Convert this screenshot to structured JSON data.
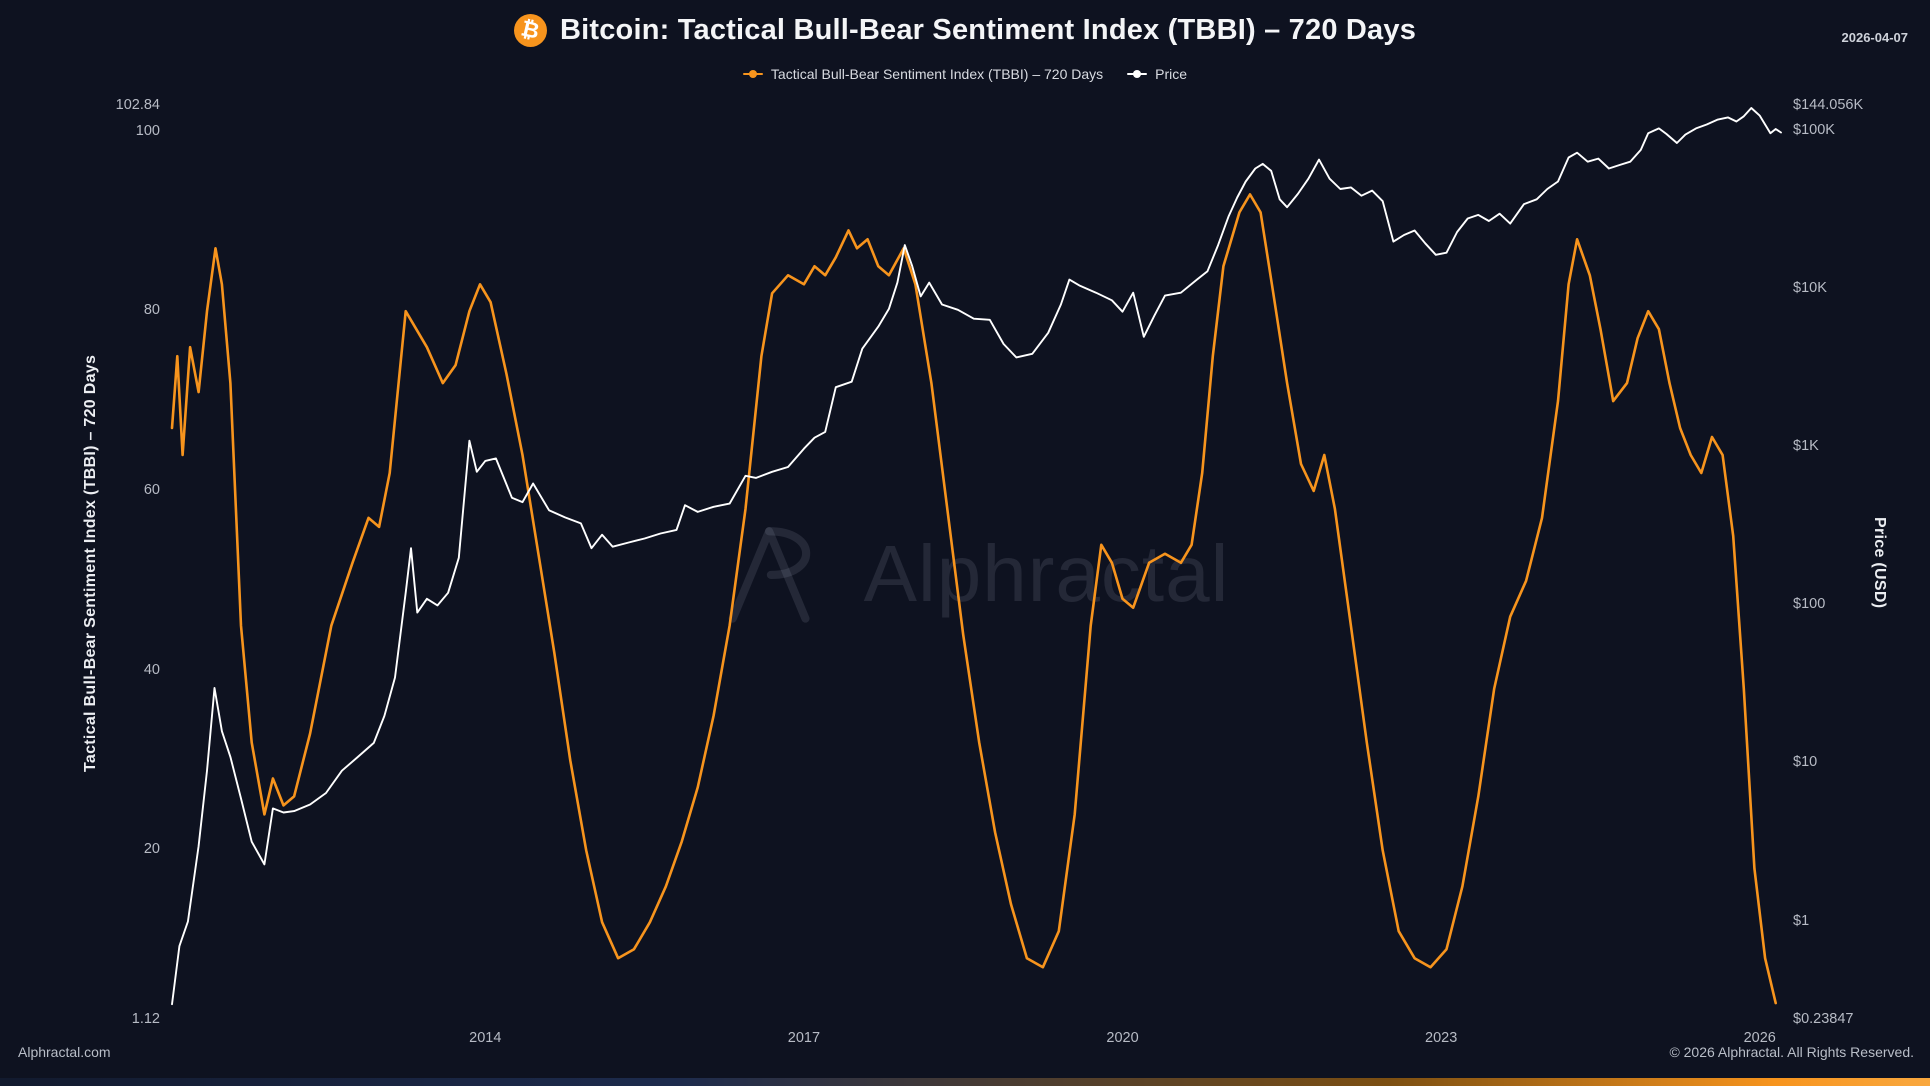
{
  "header": {
    "title": "Bitcoin: Tactical Bull-Bear Sentiment Index (TBBI) – 720 Days",
    "date": "2026-04-07",
    "bitcoin_symbol": "₿"
  },
  "legend": [
    {
      "label": "Tactical Bull-Bear Sentiment Index (TBBI) – 720 Days",
      "color": "#f7941d"
    },
    {
      "label": "Price",
      "color": "#ffffff"
    }
  ],
  "watermark": "Alphractal",
  "footer": {
    "left": "Alphractal.com",
    "right": "© 2026 Alphractal. All Rights Reserved."
  },
  "colors": {
    "background": "#0e1220",
    "tbbi_line": "#f7941d",
    "price_line": "#ffffff",
    "tick_text": "#b7bbc5"
  },
  "chart_data": {
    "type": "line",
    "title": "Bitcoin: Tactical Bull-Bear Sentiment Index (TBBI) – 720 Days",
    "x_axis": {
      "label": "",
      "range": [
        2011.05,
        2026.2
      ],
      "tick_values": [
        2014,
        2017,
        2020,
        2023,
        2026
      ],
      "tick_labels": [
        "2014",
        "2017",
        "2020",
        "2023",
        "2026"
      ]
    },
    "y_left": {
      "label": "Tactical Bull-Bear Sentiment Index (TBBI) – 720 Days",
      "scale": "linear",
      "range": [
        1.12,
        102.84
      ],
      "tick_values": [
        102.84,
        100,
        80,
        60,
        40,
        20,
        1.12
      ],
      "tick_labels": [
        "102.84",
        "100",
        "80",
        "60",
        "40",
        "20",
        "1.12"
      ]
    },
    "y_right": {
      "label": "Price (USD)",
      "scale": "log",
      "range": [
        0.23847,
        144056
      ],
      "tick_values": [
        144056,
        100000,
        10000,
        1000,
        100,
        10,
        1,
        0.23847
      ],
      "tick_labels": [
        "$144.056K",
        "$100K",
        "$10K",
        "$1K",
        "$100",
        "$10",
        "$1",
        "$0.23847"
      ]
    },
    "series": [
      {
        "name": "Tactical Bull-Bear Sentiment Index (TBBI) – 720 Days",
        "color": "#f7941d",
        "axis": "left",
        "stroke_width": 2.6,
        "points": [
          [
            2011.05,
            67
          ],
          [
            2011.1,
            75
          ],
          [
            2011.15,
            64
          ],
          [
            2011.22,
            76
          ],
          [
            2011.3,
            71
          ],
          [
            2011.38,
            80
          ],
          [
            2011.46,
            87
          ],
          [
            2011.52,
            83
          ],
          [
            2011.6,
            72
          ],
          [
            2011.7,
            45
          ],
          [
            2011.8,
            32
          ],
          [
            2011.92,
            24
          ],
          [
            2012.0,
            28
          ],
          [
            2012.1,
            25
          ],
          [
            2012.2,
            26
          ],
          [
            2012.35,
            33
          ],
          [
            2012.55,
            45
          ],
          [
            2012.75,
            52
          ],
          [
            2012.9,
            57
          ],
          [
            2013.0,
            56
          ],
          [
            2013.1,
            62
          ],
          [
            2013.25,
            80
          ],
          [
            2013.35,
            78
          ],
          [
            2013.45,
            76
          ],
          [
            2013.6,
            72
          ],
          [
            2013.72,
            74
          ],
          [
            2013.85,
            80
          ],
          [
            2013.95,
            83
          ],
          [
            2014.05,
            81
          ],
          [
            2014.2,
            73
          ],
          [
            2014.35,
            64
          ],
          [
            2014.5,
            53
          ],
          [
            2014.65,
            42
          ],
          [
            2014.8,
            30
          ],
          [
            2014.95,
            20
          ],
          [
            2015.1,
            12
          ],
          [
            2015.25,
            8
          ],
          [
            2015.4,
            9
          ],
          [
            2015.55,
            12
          ],
          [
            2015.7,
            16
          ],
          [
            2015.85,
            21
          ],
          [
            2016.0,
            27
          ],
          [
            2016.15,
            35
          ],
          [
            2016.3,
            45
          ],
          [
            2016.45,
            58
          ],
          [
            2016.6,
            75
          ],
          [
            2016.7,
            82
          ],
          [
            2016.85,
            84
          ],
          [
            2017.0,
            83
          ],
          [
            2017.1,
            85
          ],
          [
            2017.2,
            84
          ],
          [
            2017.3,
            86
          ],
          [
            2017.42,
            89
          ],
          [
            2017.5,
            87
          ],
          [
            2017.6,
            88
          ],
          [
            2017.7,
            85
          ],
          [
            2017.8,
            84
          ],
          [
            2017.94,
            87
          ],
          [
            2018.05,
            83
          ],
          [
            2018.2,
            72
          ],
          [
            2018.35,
            58
          ],
          [
            2018.5,
            44
          ],
          [
            2018.65,
            32
          ],
          [
            2018.8,
            22
          ],
          [
            2018.95,
            14
          ],
          [
            2019.1,
            8
          ],
          [
            2019.25,
            7
          ],
          [
            2019.4,
            11
          ],
          [
            2019.55,
            24
          ],
          [
            2019.7,
            45
          ],
          [
            2019.8,
            54
          ],
          [
            2019.9,
            52
          ],
          [
            2020.0,
            48
          ],
          [
            2020.1,
            47
          ],
          [
            2020.25,
            52
          ],
          [
            2020.4,
            53
          ],
          [
            2020.55,
            52
          ],
          [
            2020.65,
            54
          ],
          [
            2020.75,
            62
          ],
          [
            2020.85,
            75
          ],
          [
            2020.95,
            85
          ],
          [
            2021.1,
            91
          ],
          [
            2021.2,
            93
          ],
          [
            2021.3,
            91
          ],
          [
            2021.42,
            82
          ],
          [
            2021.55,
            72
          ],
          [
            2021.68,
            63
          ],
          [
            2021.8,
            60
          ],
          [
            2021.9,
            64
          ],
          [
            2022.0,
            58
          ],
          [
            2022.15,
            45
          ],
          [
            2022.3,
            32
          ],
          [
            2022.45,
            20
          ],
          [
            2022.6,
            11
          ],
          [
            2022.75,
            8
          ],
          [
            2022.9,
            7
          ],
          [
            2023.05,
            9
          ],
          [
            2023.2,
            16
          ],
          [
            2023.35,
            26
          ],
          [
            2023.5,
            38
          ],
          [
            2023.65,
            46
          ],
          [
            2023.8,
            50
          ],
          [
            2023.95,
            57
          ],
          [
            2024.1,
            70
          ],
          [
            2024.2,
            83
          ],
          [
            2024.28,
            88
          ],
          [
            2024.4,
            84
          ],
          [
            2024.5,
            78
          ],
          [
            2024.62,
            70
          ],
          [
            2024.75,
            72
          ],
          [
            2024.85,
            77
          ],
          [
            2024.95,
            80
          ],
          [
            2025.05,
            78
          ],
          [
            2025.15,
            72
          ],
          [
            2025.25,
            67
          ],
          [
            2025.35,
            64
          ],
          [
            2025.45,
            62
          ],
          [
            2025.55,
            66
          ],
          [
            2025.65,
            64
          ],
          [
            2025.75,
            55
          ],
          [
            2025.85,
            38
          ],
          [
            2025.95,
            18
          ],
          [
            2026.05,
            8
          ],
          [
            2026.15,
            3
          ]
        ]
      },
      {
        "name": "Price",
        "color": "#ffffff",
        "axis": "right",
        "stroke_width": 1.9,
        "points": [
          [
            2011.05,
            0.3
          ],
          [
            2011.12,
            0.7
          ],
          [
            2011.2,
            1.0
          ],
          [
            2011.3,
            3.0
          ],
          [
            2011.38,
            9.0
          ],
          [
            2011.45,
            30
          ],
          [
            2011.52,
            16
          ],
          [
            2011.6,
            11
          ],
          [
            2011.7,
            6.0
          ],
          [
            2011.8,
            3.2
          ],
          [
            2011.92,
            2.3
          ],
          [
            2012.0,
            5.2
          ],
          [
            2012.1,
            4.9
          ],
          [
            2012.2,
            5.0
          ],
          [
            2012.35,
            5.5
          ],
          [
            2012.5,
            6.5
          ],
          [
            2012.65,
            9.0
          ],
          [
            2012.8,
            11
          ],
          [
            2012.95,
            13.5
          ],
          [
            2013.05,
            20
          ],
          [
            2013.15,
            35
          ],
          [
            2013.25,
            120
          ],
          [
            2013.3,
            230
          ],
          [
            2013.36,
            90
          ],
          [
            2013.45,
            110
          ],
          [
            2013.55,
            100
          ],
          [
            2013.65,
            120
          ],
          [
            2013.75,
            200
          ],
          [
            2013.85,
            1100
          ],
          [
            2013.92,
            700
          ],
          [
            2014.0,
            820
          ],
          [
            2014.1,
            850
          ],
          [
            2014.25,
            480
          ],
          [
            2014.35,
            450
          ],
          [
            2014.45,
            590
          ],
          [
            2014.6,
            400
          ],
          [
            2014.75,
            360
          ],
          [
            2014.9,
            330
          ],
          [
            2015.0,
            230
          ],
          [
            2015.1,
            280
          ],
          [
            2015.2,
            235
          ],
          [
            2015.35,
            250
          ],
          [
            2015.5,
            265
          ],
          [
            2015.65,
            285
          ],
          [
            2015.8,
            300
          ],
          [
            2015.88,
            430
          ],
          [
            2016.0,
            390
          ],
          [
            2016.15,
            420
          ],
          [
            2016.3,
            440
          ],
          [
            2016.45,
            660
          ],
          [
            2016.55,
            640
          ],
          [
            2016.7,
            700
          ],
          [
            2016.85,
            750
          ],
          [
            2017.0,
            980
          ],
          [
            2017.1,
            1150
          ],
          [
            2017.2,
            1250
          ],
          [
            2017.3,
            2400
          ],
          [
            2017.45,
            2600
          ],
          [
            2017.55,
            4200
          ],
          [
            2017.7,
            5800
          ],
          [
            2017.8,
            7500
          ],
          [
            2017.88,
            11000
          ],
          [
            2017.95,
            19000
          ],
          [
            2018.02,
            14000
          ],
          [
            2018.1,
            9000
          ],
          [
            2018.18,
            11000
          ],
          [
            2018.3,
            8000
          ],
          [
            2018.45,
            7400
          ],
          [
            2018.6,
            6500
          ],
          [
            2018.75,
            6400
          ],
          [
            2018.88,
            4500
          ],
          [
            2019.0,
            3700
          ],
          [
            2019.15,
            3900
          ],
          [
            2019.3,
            5300
          ],
          [
            2019.42,
            8000
          ],
          [
            2019.5,
            11500
          ],
          [
            2019.6,
            10500
          ],
          [
            2019.75,
            9500
          ],
          [
            2019.9,
            8500
          ],
          [
            2020.0,
            7200
          ],
          [
            2020.1,
            9500
          ],
          [
            2020.2,
            5000
          ],
          [
            2020.3,
            6800
          ],
          [
            2020.4,
            9100
          ],
          [
            2020.55,
            9500
          ],
          [
            2020.7,
            11500
          ],
          [
            2020.8,
            13000
          ],
          [
            2020.9,
            19000
          ],
          [
            2021.0,
            29000
          ],
          [
            2021.08,
            38000
          ],
          [
            2021.16,
            48000
          ],
          [
            2021.25,
            58000
          ],
          [
            2021.32,
            62000
          ],
          [
            2021.4,
            56000
          ],
          [
            2021.48,
            37000
          ],
          [
            2021.55,
            33000
          ],
          [
            2021.65,
            40000
          ],
          [
            2021.75,
            50000
          ],
          [
            2021.85,
            66000
          ],
          [
            2021.95,
            50000
          ],
          [
            2022.05,
            43000
          ],
          [
            2022.15,
            44000
          ],
          [
            2022.25,
            39000
          ],
          [
            2022.35,
            42000
          ],
          [
            2022.45,
            36000
          ],
          [
            2022.55,
            20000
          ],
          [
            2022.65,
            22000
          ],
          [
            2022.75,
            23500
          ],
          [
            2022.85,
            19500
          ],
          [
            2022.95,
            16500
          ],
          [
            2023.05,
            17000
          ],
          [
            2023.15,
            23000
          ],
          [
            2023.25,
            28000
          ],
          [
            2023.35,
            29500
          ],
          [
            2023.45,
            27000
          ],
          [
            2023.55,
            30000
          ],
          [
            2023.65,
            26000
          ],
          [
            2023.78,
            34500
          ],
          [
            2023.9,
            37000
          ],
          [
            2024.0,
            43000
          ],
          [
            2024.1,
            48000
          ],
          [
            2024.2,
            68000
          ],
          [
            2024.28,
            73000
          ],
          [
            2024.38,
            64000
          ],
          [
            2024.48,
            67000
          ],
          [
            2024.58,
            58000
          ],
          [
            2024.68,
            61000
          ],
          [
            2024.78,
            64000
          ],
          [
            2024.88,
            76000
          ],
          [
            2024.95,
            97000
          ],
          [
            2025.05,
            104000
          ],
          [
            2025.12,
            96000
          ],
          [
            2025.22,
            84000
          ],
          [
            2025.3,
            95000
          ],
          [
            2025.4,
            104000
          ],
          [
            2025.5,
            110000
          ],
          [
            2025.6,
            118000
          ],
          [
            2025.7,
            122000
          ],
          [
            2025.78,
            115000
          ],
          [
            2025.85,
            124000
          ],
          [
            2025.92,
            140000
          ],
          [
            2026.0,
            125000
          ],
          [
            2026.05,
            110000
          ],
          [
            2026.1,
            97000
          ],
          [
            2026.15,
            103000
          ],
          [
            2026.2,
            98000
          ]
        ]
      }
    ]
  }
}
